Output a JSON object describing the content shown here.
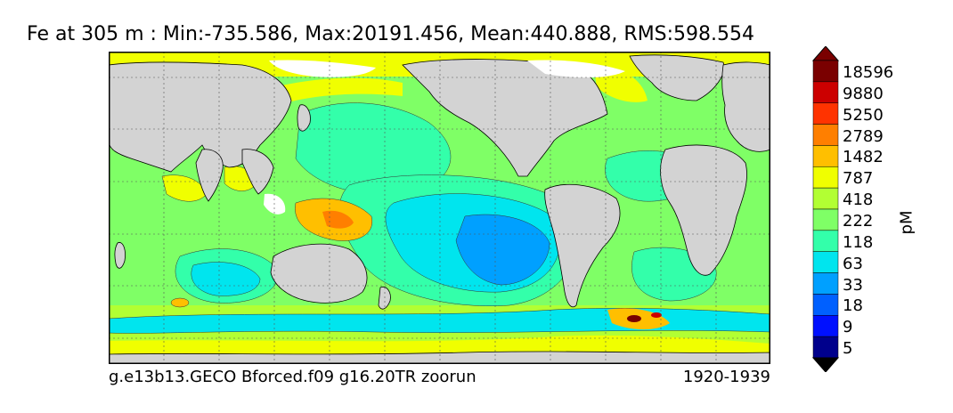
{
  "title": "Fe at 305 m : Min:-735.586, Max:20191.456, Mean:440.888, RMS:598.554",
  "caption_left": "g.e13b13.GECO Bforced.f09 g16.20TR zoorun",
  "caption_right": "1920-1939",
  "units": "pM",
  "colorbar": {
    "levels": [
      "18596",
      "9880",
      "5250",
      "2789",
      "1482",
      "787",
      "418",
      "222",
      "118",
      "63",
      "33",
      "18",
      "9",
      "5"
    ],
    "colors": [
      "#7a0000",
      "#cc0000",
      "#ff3300",
      "#ff7f00",
      "#ffbf00",
      "#f0ff00",
      "#b2ff33",
      "#7fff66",
      "#33ffaa",
      "#00e5ee",
      "#00a0ff",
      "#0060ff",
      "#0010ff",
      "#00008c",
      "#000000"
    ]
  },
  "map": {
    "land_color": "#d3d3d3",
    "ice_color": "#ffffff",
    "grid": true
  }
}
